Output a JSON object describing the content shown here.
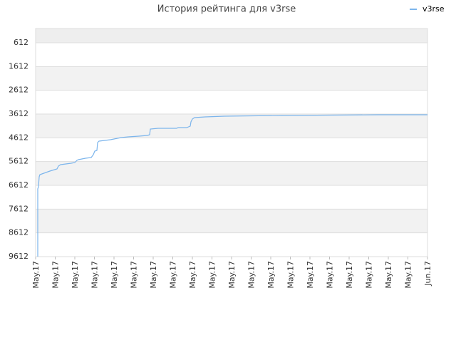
{
  "chart_data": {
    "type": "line",
    "title": "История рейтинга для v3rse",
    "xlim": [
      0,
      20
    ],
    "xticks": [
      {
        "value": 0,
        "label": "May.17"
      },
      {
        "value": 1,
        "label": "May.17"
      },
      {
        "value": 2,
        "label": "May.17"
      },
      {
        "value": 3,
        "label": "May.17"
      },
      {
        "value": 4,
        "label": "May.17"
      },
      {
        "value": 5,
        "label": "May.17"
      },
      {
        "value": 6,
        "label": "May.17"
      },
      {
        "value": 7,
        "label": "May.17"
      },
      {
        "value": 8,
        "label": "May.17"
      },
      {
        "value": 9,
        "label": "May.17"
      },
      {
        "value": 10,
        "label": "May.17"
      },
      {
        "value": 11,
        "label": "May.17"
      },
      {
        "value": 12,
        "label": "May.17"
      },
      {
        "value": 13,
        "label": "May.17"
      },
      {
        "value": 14,
        "label": "May.17"
      },
      {
        "value": 15,
        "label": "May.17"
      },
      {
        "value": 16,
        "label": "May.17"
      },
      {
        "value": 17,
        "label": "May.17"
      },
      {
        "value": 18,
        "label": "May.17"
      },
      {
        "value": 19,
        "label": "May.17"
      },
      {
        "value": 20,
        "label": "Jun.17"
      }
    ],
    "ylim": [
      9612,
      12
    ],
    "yticks": [
      612,
      1612,
      2612,
      3612,
      4612,
      5612,
      6612,
      7612,
      8612,
      9612
    ],
    "grid": true,
    "legend": "top-right",
    "x": [
      0.109,
      0.109,
      0.145,
      0.182,
      0.218,
      0.727,
      1.091,
      1.164,
      1.273,
      1.818,
      2.0,
      2.109,
      2.182,
      2.545,
      2.836,
      2.945,
      3.018,
      3.127,
      3.164,
      3.236,
      3.818,
      4.364,
      4.727,
      5.273,
      5.709,
      5.818,
      5.855,
      6.255,
      6.364,
      7.2,
      7.273,
      7.709,
      7.891,
      7.927,
      8.0,
      8.109,
      8.655,
      9.636,
      12.545,
      17.455,
      20
    ],
    "series": [
      {
        "name": "v3rse",
        "color": "#7cb5ec",
        "values": [
          9612,
          6762,
          6672,
          6252,
          6162,
          6012,
          5922,
          5802,
          5742,
          5682,
          5652,
          5562,
          5532,
          5472,
          5442,
          5322,
          5172,
          5142,
          4812,
          4752,
          4692,
          4602,
          4572,
          4542,
          4512,
          4482,
          4242,
          4212,
          4212,
          4212,
          4182,
          4182,
          4122,
          3942,
          3822,
          3762,
          3732,
          3702,
          3672,
          3642,
          3642
        ]
      }
    ]
  }
}
